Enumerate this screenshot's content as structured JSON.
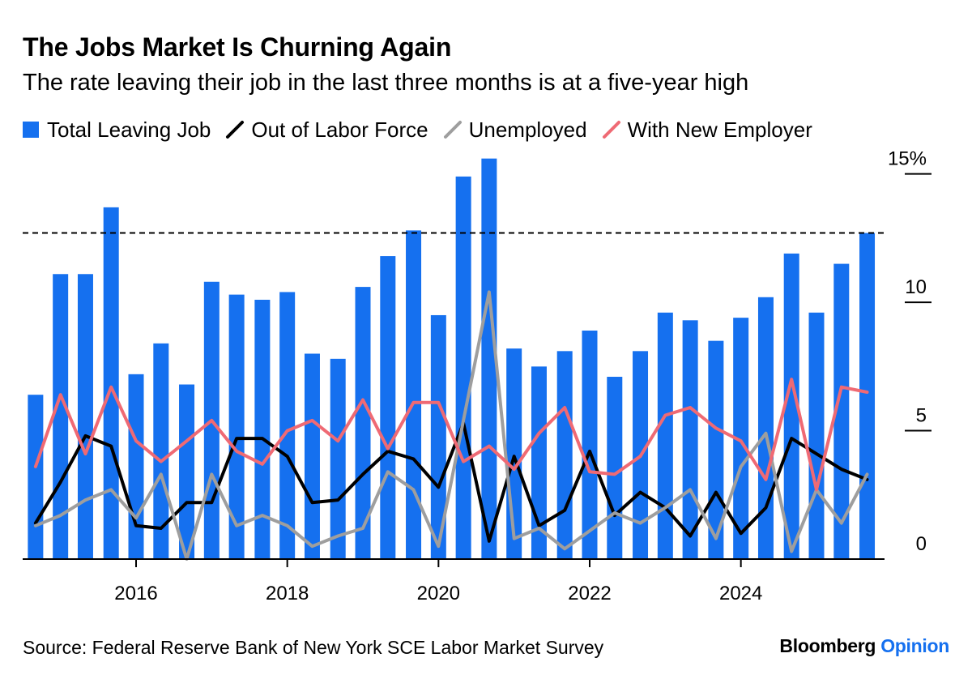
{
  "chart_data": {
    "type": "bar",
    "title": "The Jobs Market Is Churning Again",
    "subtitle": "The rate leaving their job in the last three months is at a five-year high",
    "x": [
      2014.67,
      2015.0,
      2015.33,
      2015.67,
      2016.0,
      2016.33,
      2016.67,
      2017.0,
      2017.33,
      2017.67,
      2018.0,
      2018.33,
      2018.67,
      2019.0,
      2019.33,
      2019.67,
      2020.0,
      2020.33,
      2020.67,
      2021.0,
      2021.33,
      2021.67,
      2022.0,
      2022.33,
      2022.67,
      2023.0,
      2023.33,
      2023.67,
      2024.0,
      2024.33,
      2024.67,
      2025.0,
      2025.33,
      2025.67
    ],
    "xlim": [
      2014.5,
      2025.9
    ],
    "ylim": [
      0,
      15
    ],
    "yticks": [
      0,
      5,
      10,
      15
    ],
    "ytick_labels": [
      "0",
      "5",
      "10",
      "15%"
    ],
    "xticks": [
      2016,
      2018,
      2020,
      2022,
      2024
    ],
    "xtick_labels": [
      "2016",
      "2018",
      "2020",
      "2022",
      "2024"
    ],
    "reference_line": 12.7,
    "series": [
      {
        "name": "Total Leaving Job",
        "kind": "bar",
        "color": "#1570ef",
        "values": [
          6.4,
          11.1,
          11.1,
          13.7,
          7.2,
          8.4,
          6.8,
          10.8,
          10.3,
          10.1,
          10.4,
          8.0,
          7.8,
          10.6,
          11.8,
          12.8,
          9.5,
          14.9,
          15.6,
          8.2,
          7.5,
          8.1,
          8.9,
          7.1,
          8.1,
          9.6,
          9.3,
          8.5,
          9.4,
          10.2,
          11.9,
          9.6,
          11.5,
          12.7
        ]
      },
      {
        "name": "Out of Labor Force",
        "kind": "line",
        "color": "#000000",
        "values": [
          1.4,
          3.0,
          4.8,
          4.4,
          1.3,
          1.2,
          2.2,
          2.2,
          4.7,
          4.7,
          4.0,
          2.2,
          2.3,
          3.3,
          4.2,
          3.9,
          2.8,
          5.3,
          0.7,
          4.0,
          1.3,
          1.9,
          4.2,
          1.7,
          2.6,
          2.0,
          0.9,
          2.6,
          1.0,
          2.0,
          4.7,
          4.1,
          3.5,
          3.1
        ]
      },
      {
        "name": "Unemployed",
        "kind": "line",
        "color": "#9e9e9e",
        "values": [
          1.3,
          1.7,
          2.3,
          2.7,
          1.6,
          3.3,
          0.0,
          3.3,
          1.3,
          1.7,
          1.3,
          0.5,
          0.9,
          1.2,
          3.4,
          2.7,
          0.5,
          5.4,
          10.4,
          0.8,
          1.2,
          0.4,
          1.1,
          1.8,
          1.4,
          2.0,
          2.7,
          0.8,
          3.6,
          4.9,
          0.3,
          2.7,
          1.4,
          3.3
        ]
      },
      {
        "name": "With New Employer",
        "kind": "line",
        "color": "#ef6a74",
        "values": [
          3.6,
          6.4,
          4.1,
          6.7,
          4.6,
          3.8,
          4.6,
          5.4,
          4.2,
          3.7,
          5.0,
          5.4,
          4.6,
          6.2,
          4.3,
          6.1,
          6.1,
          3.8,
          4.4,
          3.5,
          4.9,
          5.9,
          3.4,
          3.3,
          4.0,
          5.6,
          5.9,
          5.1,
          4.6,
          3.1,
          7.0,
          2.7,
          6.7,
          6.5
        ]
      }
    ]
  },
  "source": "Source: Federal Reserve Bank of New York SCE Labor Market Survey",
  "brand": {
    "part1": "Bloomberg",
    "part2": "Opinion"
  }
}
